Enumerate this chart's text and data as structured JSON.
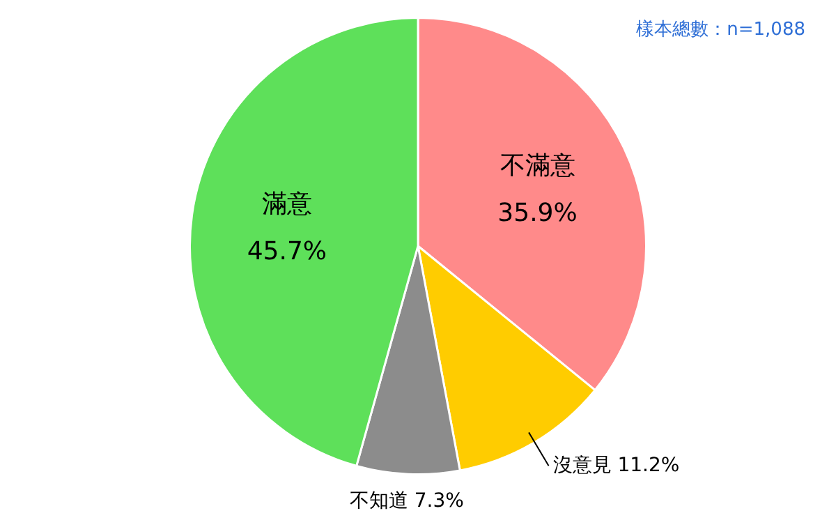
{
  "chart_data": {
    "type": "pie",
    "categories": [
      "不滿意",
      "沒意見",
      "不知道",
      "滿意"
    ],
    "values": [
      35.9,
      11.2,
      7.3,
      45.7
    ],
    "colors": [
      "#ff8a8a",
      "#ffcc00",
      "#8c8c8c",
      "#5ee05a"
    ],
    "value_labels": [
      "35.9%",
      "11.2%",
      "7.3%",
      "45.7%"
    ],
    "annotations": [
      "樣本總數：n=1,088"
    ],
    "legend": false
  }
}
